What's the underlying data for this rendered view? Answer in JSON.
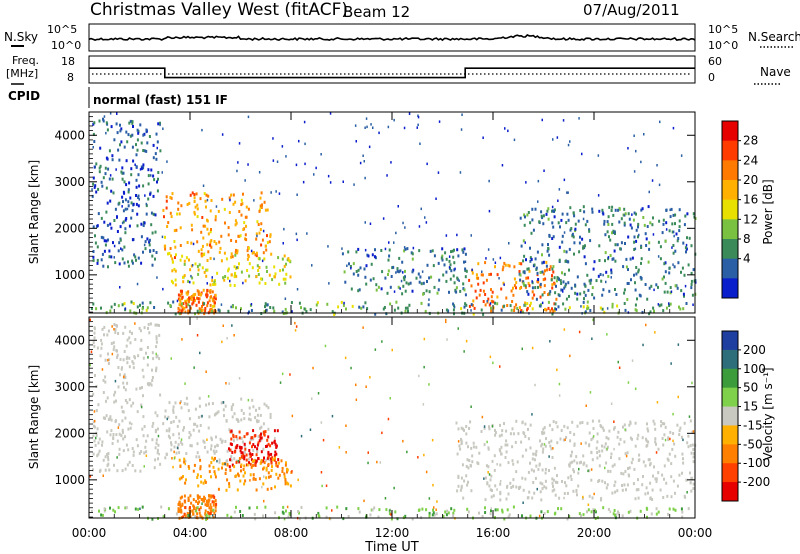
{
  "header": {
    "title": "Christmas Valley West (fitACF)",
    "beam": "Beam 12",
    "date": "07/Aug/2011"
  },
  "top_panels": {
    "nsky_label": "N.Sky",
    "nsearch_label": "N.Search",
    "nsky_ticks": [
      "10^5",
      "10^0"
    ],
    "nsearch_ticks": [
      "10^5",
      "10^0"
    ],
    "freq_label_1": "Freq.",
    "freq_label_2": "[MHz]",
    "freq_ticks": [
      "18",
      "8"
    ],
    "nave_label": "Nave",
    "nave_ticks": [
      "60",
      "0"
    ],
    "cpid_label": "CPID",
    "cpid_text": "normal (fast) 151 IF"
  },
  "axes": {
    "x_label": "Time UT",
    "y_label_power": "Slant Range [km]",
    "y_label_velocity": "Slant Range [km]",
    "x_ticks": [
      "00:00",
      "04:00",
      "08:00",
      "12:00",
      "16:00",
      "20:00",
      "00:00"
    ],
    "y_ticks": [
      "1000",
      "2000",
      "3000",
      "4000"
    ]
  },
  "power_scale": {
    "label": "Power [dB]",
    "ticks": [
      "28",
      "24",
      "20",
      "16",
      "12",
      "8",
      "4"
    ],
    "colors": [
      "#e60000",
      "#ff3b00",
      "#ff7a00",
      "#ffb000",
      "#e8e000",
      "#7ac142",
      "#3a8a5a",
      "#2a5fa5",
      "#0a1ecc"
    ]
  },
  "velocity_scale": {
    "label": "Velocity [m s⁻¹]",
    "ticks": [
      "200",
      "100",
      "50",
      "15",
      "-15",
      "-50",
      "-100",
      "-200"
    ],
    "colors": [
      "#1e3fa0",
      "#2e6e7a",
      "#3c9c3c",
      "#7fd04a",
      "#c8c8c0",
      "#ffb000",
      "#ff8000",
      "#ff4000",
      "#e60000"
    ]
  },
  "chart_data": {
    "type": "heatmap",
    "title": "Christmas Valley West (fitACF)",
    "xlabel": "Time UT",
    "ylabel": "Slant Range [km]",
    "xlim": [
      0,
      24
    ],
    "ylim": [
      180,
      4500
    ],
    "frequency_MHz": {
      "x": [
        0,
        3.0,
        3.0,
        14.9,
        14.9,
        24
      ],
      "values": [
        13.5,
        13.5,
        10.0,
        10.0,
        13.5,
        13.5
      ]
    },
    "power_regions": [
      {
        "time": [
          0.1,
          2.8
        ],
        "range": [
          1200,
          4400
        ],
        "power_dB": 6
      },
      {
        "time": [
          2.9,
          7.2
        ],
        "range": [
          1400,
          2800
        ],
        "power_dB": 24
      },
      {
        "time": [
          3.2,
          8.0
        ],
        "range": [
          800,
          1500
        ],
        "power_dB": 18
      },
      {
        "time": [
          3.5,
          5.0
        ],
        "range": [
          200,
          700
        ],
        "power_dB": 26
      },
      {
        "time": [
          10.0,
          15.0
        ],
        "range": [
          600,
          1600
        ],
        "power_dB": 8
      },
      {
        "time": [
          15.0,
          18.5
        ],
        "range": [
          250,
          1300
        ],
        "power_dB": 26
      },
      {
        "time": [
          17.0,
          24.0
        ],
        "range": [
          500,
          2500
        ],
        "power_dB": 8
      },
      {
        "time": [
          0,
          24
        ],
        "range": [
          180,
          450
        ],
        "power_dB": 12
      }
    ],
    "velocity_regions": [
      {
        "time": [
          0.1,
          2.8
        ],
        "range": [
          1200,
          4400
        ],
        "velocity_ms": 0
      },
      {
        "time": [
          2.9,
          7.2
        ],
        "range": [
          1400,
          2800
        ],
        "velocity_ms": 0
      },
      {
        "time": [
          5.5,
          7.5
        ],
        "range": [
          1300,
          2100
        ],
        "velocity_ms": -200
      },
      {
        "time": [
          3.5,
          8.0
        ],
        "range": [
          800,
          1500
        ],
        "velocity_ms": -50
      },
      {
        "time": [
          3.5,
          5.0
        ],
        "range": [
          200,
          700
        ],
        "velocity_ms": -80
      },
      {
        "time": [
          14.5,
          24.0
        ],
        "range": [
          600,
          2300
        ],
        "velocity_ms": 0
      },
      {
        "time": [
          0,
          24
        ],
        "range": [
          180,
          450
        ],
        "velocity_ms": 30
      }
    ]
  }
}
